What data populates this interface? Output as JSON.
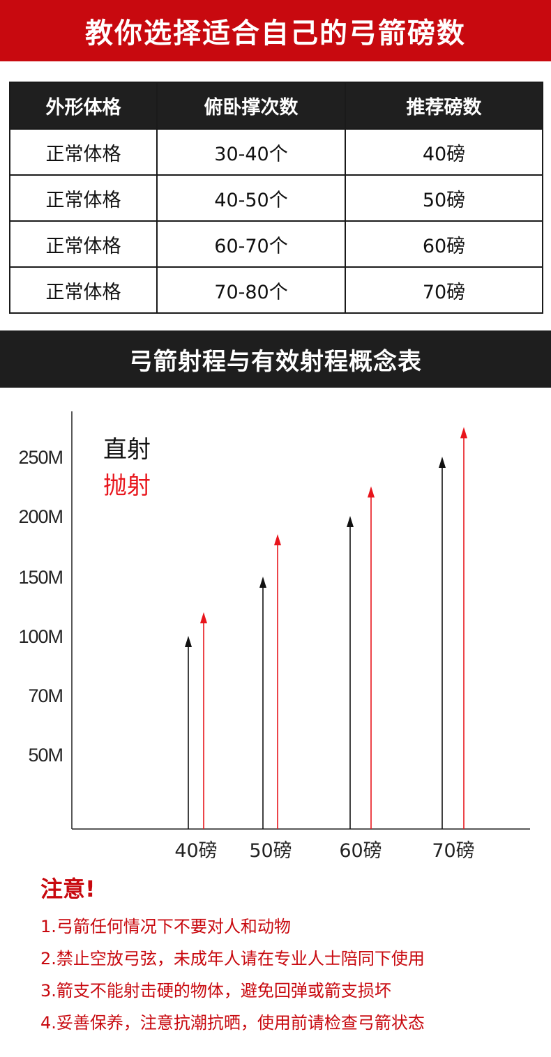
{
  "header": {
    "title": "教你选择适合自己的弓箭磅数"
  },
  "table": {
    "headers": [
      "外形体格",
      "俯卧撑次数",
      "推荐磅数"
    ],
    "rows": [
      [
        "正常体格",
        "30-40个",
        "40磅"
      ],
      [
        "正常体格",
        "40-50个",
        "50磅"
      ],
      [
        "正常体格",
        "60-70个",
        "60磅"
      ],
      [
        "正常体格",
        "70-80个",
        "70磅"
      ]
    ]
  },
  "section": {
    "title": "弓箭射程与有效射程概念表"
  },
  "chart_data": {
    "type": "bar",
    "categories": [
      "40磅",
      "50磅",
      "60磅",
      "70磅"
    ],
    "y_ticks": [
      "50M",
      "70M",
      "100M",
      "150M",
      "200M",
      "250M"
    ],
    "series": [
      {
        "name": "直射",
        "color": "#111111",
        "values": [
          100,
          150,
          200,
          250
        ]
      },
      {
        "name": "抛射",
        "color": "#e8151c",
        "values": [
          120,
          185,
          225,
          275
        ]
      }
    ],
    "legend_position": "top-left",
    "grid": false
  },
  "notes": {
    "title": "注意!",
    "items": [
      "1.弓箭任何情况下不要对人和动物",
      "2.禁止空放弓弦，未成年人请在专业人士陪同下使用",
      "3.箭支不能射击硬的物体，避免回弹或箭支损坏",
      "4.妥善保养，注意抗潮抗晒，使用前请检查弓箭状态"
    ]
  }
}
